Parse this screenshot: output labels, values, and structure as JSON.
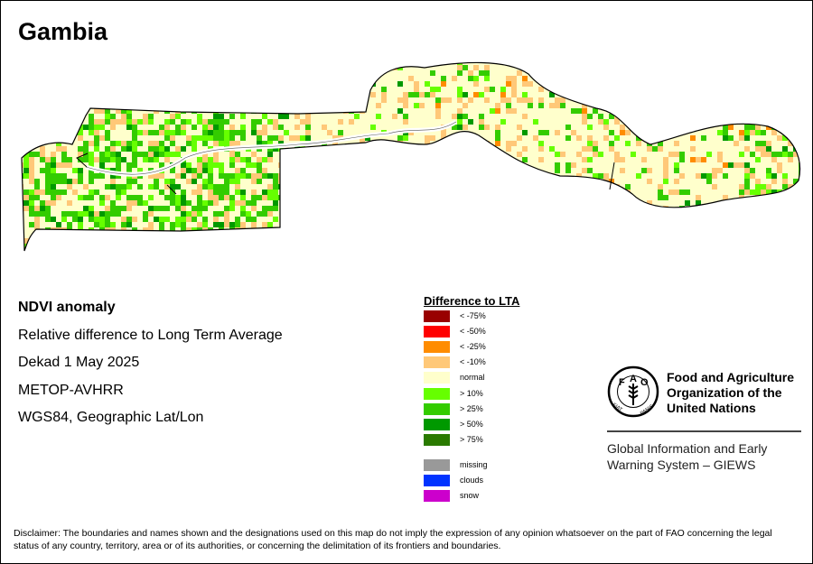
{
  "map": {
    "country": "Gambia",
    "title_lines": [
      "NDVI anomaly",
      "Relative difference to Long Term Average",
      "Dekad 1 May 2025",
      "METOP-AVHRR",
      "WGS84, Geographic Lat/Lon"
    ]
  },
  "legend": {
    "title": "Difference to LTA",
    "classes": [
      {
        "label": "< -75%",
        "color": "#990000"
      },
      {
        "label": "< -50%",
        "color": "#ff0000"
      },
      {
        "label": "< -25%",
        "color": "#ff8c00"
      },
      {
        "label": "< -10%",
        "color": "#ffc878"
      },
      {
        "label": "normal",
        "color": "#ffffcc"
      },
      {
        "label": "> 10%",
        "color": "#66ff00"
      },
      {
        "label": "> 25%",
        "color": "#33cc00"
      },
      {
        "label": "> 50%",
        "color": "#009900"
      },
      {
        "label": "> 75%",
        "color": "#2a7a00"
      }
    ],
    "extra": [
      {
        "label": "missing",
        "color": "#999999"
      },
      {
        "label": "clouds",
        "color": "#0033ff"
      },
      {
        "label": "snow",
        "color": "#cc00cc"
      }
    ]
  },
  "organization": {
    "name_lines": [
      "Food and Agriculture",
      "Organization of the",
      "United Nations"
    ],
    "logo_text": "FAO",
    "logo_motto": "FIAT PANIS",
    "program_lines": [
      "Global Information and Early",
      "Warning System – GIEWS"
    ]
  },
  "disclaimer": "Disclaimer: The boundaries and names shown and the designations used on this map do not imply the expression of any opinion whatsoever on the part of FAO concerning the legal status of any country, territory, area or of its authorities, or concerning the delimitation of its frontiers and boundaries."
}
